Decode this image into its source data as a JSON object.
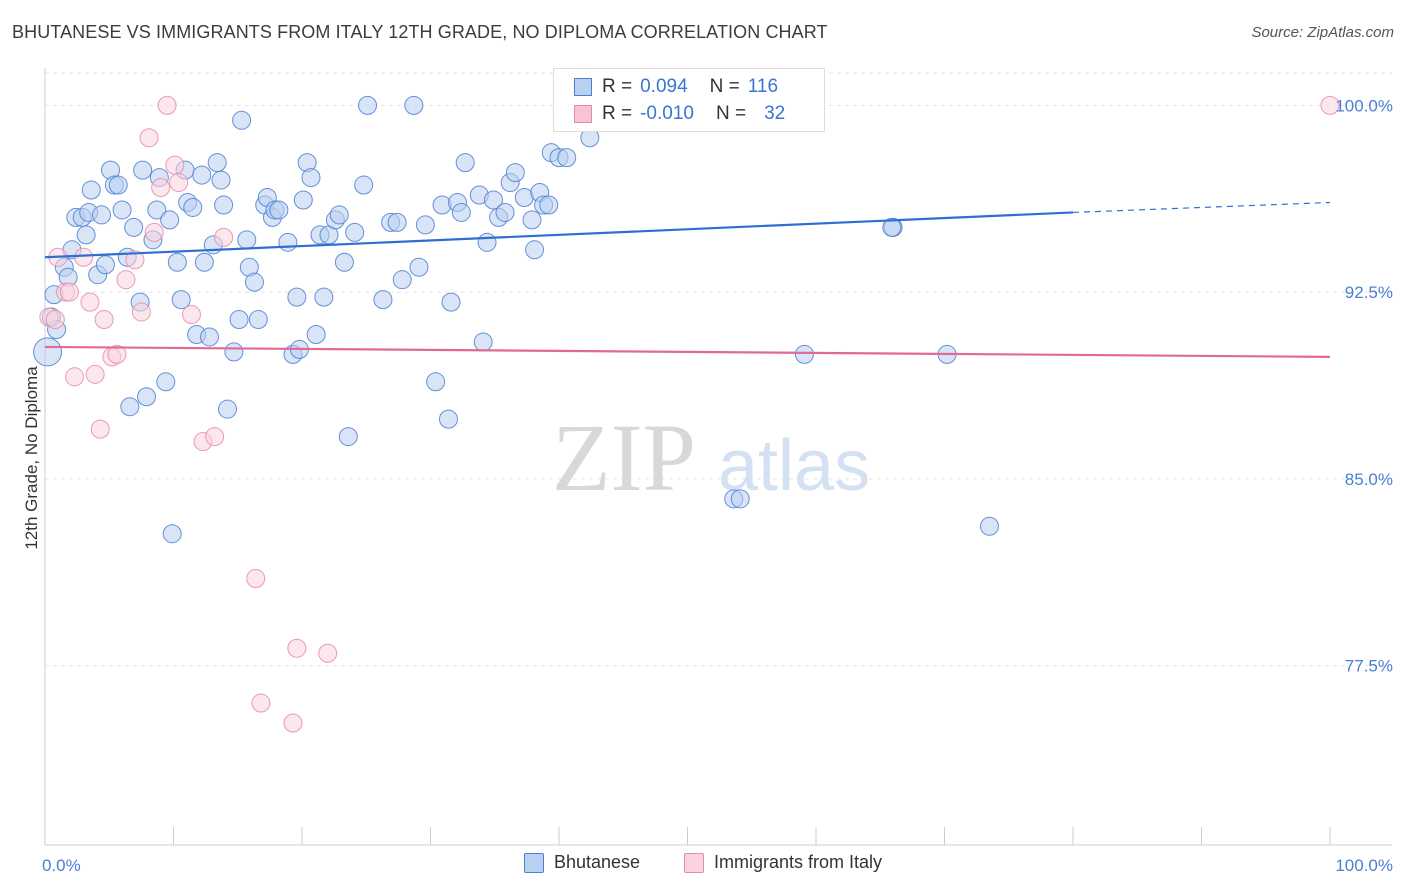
{
  "header": {
    "title": "BHUTANESE VS IMMIGRANTS FROM ITALY 12TH GRADE, NO DIPLOMA CORRELATION CHART",
    "source": "Source: ZipAtlas.com"
  },
  "watermark": {
    "zip": "ZIP",
    "atlas": "atlas"
  },
  "legend_top": {
    "rows": [
      {
        "r_label": "R =",
        "r_value": "0.094",
        "n_label": "N =",
        "n_value": "116",
        "color": "#4a7fd4",
        "fill": "#b9d0f1"
      },
      {
        "r_label": "R =",
        "r_value": "-0.010",
        "n_label": "N =",
        "n_value": "32",
        "color": "#e58aaa",
        "fill": "#f6c4d4"
      }
    ]
  },
  "legend_bottom": {
    "items": [
      {
        "label": "Bhutanese",
        "color": "#4a7fd4",
        "fill": "#b9d0f1"
      },
      {
        "label": "Immigrants from Italy",
        "color": "#e58aaa",
        "fill": "#f9d3df"
      }
    ]
  },
  "chart_data": {
    "type": "scatter",
    "title": "BHUTANESE VS IMMIGRANTS FROM ITALY 12TH GRADE, NO DIPLOMA CORRELATION CHART",
    "ylabel": "12th Grade, No Diploma",
    "xlabel": "",
    "xlim": [
      0,
      100
    ],
    "ylim": [
      70.3,
      101.5
    ],
    "y_ticks": [
      77.5,
      85.0,
      92.5,
      100.0
    ],
    "y_tick_labels": [
      "77.5%",
      "85.0%",
      "92.5%",
      "100.0%"
    ],
    "x_tick_labels": [
      "0.0%",
      "100.0%"
    ],
    "grid": true,
    "legend_position": "top-center and bottom",
    "series": [
      {
        "name": "Bhutanese",
        "color": "#4a7fd4",
        "fill": "#b9d0f1",
        "trend": {
          "x": [
            0,
            80
          ],
          "y": [
            93.9,
            95.7
          ],
          "dashed_to": [
            100,
            96.1
          ]
        },
        "points": [
          [
            0.2,
            90.1
          ],
          [
            0.5,
            91.5
          ],
          [
            0.7,
            92.4
          ],
          [
            0.9,
            91.0
          ],
          [
            1.5,
            93.5
          ],
          [
            1.8,
            93.1
          ],
          [
            2.1,
            94.2
          ],
          [
            2.4,
            95.5
          ],
          [
            2.9,
            95.5
          ],
          [
            3.2,
            94.8
          ],
          [
            3.4,
            95.7
          ],
          [
            3.6,
            96.6
          ],
          [
            4.1,
            93.2
          ],
          [
            4.4,
            95.6
          ],
          [
            4.7,
            93.6
          ],
          [
            5.1,
            97.4
          ],
          [
            5.4,
            96.8
          ],
          [
            5.7,
            96.8
          ],
          [
            6.0,
            95.8
          ],
          [
            6.4,
            93.9
          ],
          [
            6.6,
            87.9
          ],
          [
            6.9,
            95.1
          ],
          [
            7.4,
            92.1
          ],
          [
            7.6,
            97.4
          ],
          [
            7.9,
            88.3
          ],
          [
            8.4,
            94.6
          ],
          [
            8.7,
            95.8
          ],
          [
            8.9,
            97.1
          ],
          [
            9.4,
            88.9
          ],
          [
            9.7,
            95.4
          ],
          [
            9.9,
            82.8
          ],
          [
            10.3,
            93.7
          ],
          [
            10.6,
            92.2
          ],
          [
            10.9,
            97.4
          ],
          [
            11.1,
            96.1
          ],
          [
            11.5,
            95.9
          ],
          [
            11.8,
            90.8
          ],
          [
            12.2,
            97.2
          ],
          [
            12.4,
            93.7
          ],
          [
            12.8,
            90.7
          ],
          [
            13.1,
            94.4
          ],
          [
            13.4,
            97.7
          ],
          [
            13.7,
            97.0
          ],
          [
            13.9,
            96.0
          ],
          [
            14.2,
            87.8
          ],
          [
            14.7,
            90.1
          ],
          [
            15.1,
            91.4
          ],
          [
            15.3,
            99.4
          ],
          [
            15.7,
            94.6
          ],
          [
            15.9,
            93.5
          ],
          [
            16.3,
            92.9
          ],
          [
            16.6,
            91.4
          ],
          [
            17.1,
            96.0
          ],
          [
            17.3,
            96.3
          ],
          [
            17.7,
            95.5
          ],
          [
            17.9,
            95.8
          ],
          [
            18.2,
            95.8
          ],
          [
            18.9,
            94.5
          ],
          [
            19.3,
            90.0
          ],
          [
            19.6,
            92.3
          ],
          [
            19.8,
            90.2
          ],
          [
            20.1,
            96.2
          ],
          [
            20.4,
            97.7
          ],
          [
            20.7,
            97.1
          ],
          [
            21.1,
            90.8
          ],
          [
            21.4,
            94.8
          ],
          [
            21.7,
            92.3
          ],
          [
            22.1,
            94.8
          ],
          [
            22.6,
            95.4
          ],
          [
            22.9,
            95.6
          ],
          [
            23.3,
            93.7
          ],
          [
            23.6,
            86.7
          ],
          [
            24.1,
            94.9
          ],
          [
            24.8,
            96.8
          ],
          [
            25.1,
            100.0
          ],
          [
            26.3,
            92.2
          ],
          [
            26.9,
            95.3
          ],
          [
            27.4,
            95.3
          ],
          [
            27.8,
            93.0
          ],
          [
            28.7,
            100.0
          ],
          [
            29.1,
            93.5
          ],
          [
            29.6,
            95.2
          ],
          [
            30.4,
            88.9
          ],
          [
            30.9,
            96.0
          ],
          [
            31.4,
            87.4
          ],
          [
            31.6,
            92.1
          ],
          [
            32.1,
            96.1
          ],
          [
            32.4,
            95.7
          ],
          [
            32.7,
            97.7
          ],
          [
            33.8,
            96.4
          ],
          [
            34.1,
            90.5
          ],
          [
            34.4,
            94.5
          ],
          [
            34.9,
            96.2
          ],
          [
            35.3,
            95.5
          ],
          [
            35.8,
            95.7
          ],
          [
            36.2,
            96.9
          ],
          [
            36.6,
            97.3
          ],
          [
            37.3,
            96.3
          ],
          [
            37.9,
            95.4
          ],
          [
            38.1,
            94.2
          ],
          [
            38.5,
            96.5
          ],
          [
            38.8,
            96.0
          ],
          [
            39.2,
            96.0
          ],
          [
            39.4,
            98.1
          ],
          [
            40.0,
            97.9
          ],
          [
            40.6,
            97.9
          ],
          [
            41.6,
            100.0
          ],
          [
            42.4,
            98.7
          ],
          [
            44.9,
            100.0
          ],
          [
            53.6,
            84.2
          ],
          [
            54.1,
            84.2
          ],
          [
            59.1,
            90.0
          ],
          [
            66.0,
            95.1
          ],
          [
            65.9,
            95.1
          ],
          [
            70.2,
            90.0
          ],
          [
            73.5,
            83.1
          ]
        ]
      },
      {
        "name": "Immigrants from Italy",
        "color": "#e58aaa",
        "fill": "#f9d3df",
        "trend": {
          "x": [
            0,
            100
          ],
          "y": [
            90.3,
            89.9
          ]
        },
        "points": [
          [
            0.3,
            91.5
          ],
          [
            0.8,
            91.4
          ],
          [
            1.0,
            93.9
          ],
          [
            1.6,
            92.5
          ],
          [
            1.9,
            92.5
          ],
          [
            2.3,
            89.1
          ],
          [
            3.0,
            93.9
          ],
          [
            3.5,
            92.1
          ],
          [
            3.9,
            89.2
          ],
          [
            4.3,
            87.0
          ],
          [
            4.6,
            91.4
          ],
          [
            5.2,
            89.9
          ],
          [
            5.6,
            90.0
          ],
          [
            6.3,
            93.0
          ],
          [
            7.0,
            93.8
          ],
          [
            7.5,
            91.7
          ],
          [
            8.1,
            98.7
          ],
          [
            8.5,
            94.9
          ],
          [
            9.0,
            96.7
          ],
          [
            9.5,
            100.0
          ],
          [
            10.1,
            97.6
          ],
          [
            10.4,
            96.9
          ],
          [
            11.4,
            91.6
          ],
          [
            12.3,
            86.5
          ],
          [
            13.2,
            86.7
          ],
          [
            13.9,
            94.7
          ],
          [
            16.4,
            81.0
          ],
          [
            16.8,
            76.0
          ],
          [
            19.3,
            75.2
          ],
          [
            19.6,
            78.2
          ],
          [
            22.0,
            78.0
          ],
          [
            100.0,
            100.0
          ]
        ]
      }
    ]
  }
}
